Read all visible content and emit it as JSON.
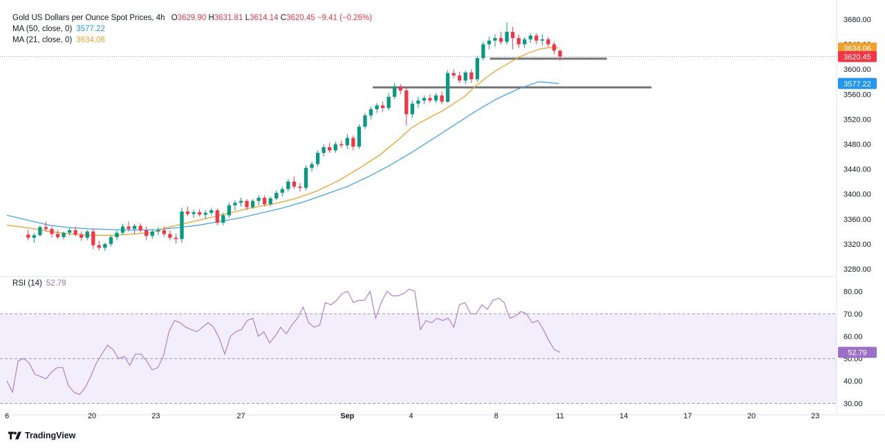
{
  "legend": {
    "title": "Gold US Dollars per Ounce Spot Prices, 4h",
    "open_label": "O",
    "open": "3629.90",
    "high_label": "H",
    "high": "3631.81",
    "low_label": "L",
    "low": "3614.14",
    "close_label": "C",
    "close": "3620.45",
    "change": "−9.41 (−0.26%)",
    "ma50_label": "MA (50, close, 0)",
    "ma50_value": "3577.22",
    "ma21_label": "MA (21, close, 0)",
    "ma21_value": "3634.06"
  },
  "rsi_legend": {
    "label": "RSI (14)",
    "value": "52.79"
  },
  "brand": {
    "name": "TradingView"
  },
  "colors": {
    "up": "#089981",
    "down": "#f23645",
    "ma50": "#42a5f5",
    "ma21": "#f0a12b",
    "rsi": "#b07fd6",
    "rsi_band": "#f3eefb",
    "support": "#757575",
    "grid": "#e0e3eb"
  },
  "chart_data": [
    {
      "type": "candlestick",
      "title": "Gold US Dollars per Ounce Spot Prices, 4h",
      "ylim": [
        3270,
        3700
      ],
      "y_ticks": [
        "3680.00",
        "3640.00",
        "3600.00",
        "3560.00",
        "3520.00",
        "3480.00",
        "3440.00",
        "3400.00",
        "3360.00",
        "3320.00",
        "3280.00"
      ],
      "x_ticks": [
        {
          "day": 16,
          "label": "6"
        },
        {
          "day": 20,
          "label": "20"
        },
        {
          "day": 23,
          "label": "23"
        },
        {
          "day": 27,
          "label": "27"
        },
        {
          "day": 32,
          "label": "Sep"
        },
        {
          "day": 35,
          "label": "4"
        },
        {
          "day": 39,
          "label": "8"
        },
        {
          "day": 42,
          "label": "11"
        },
        {
          "day": 45,
          "label": "14"
        },
        {
          "day": 48,
          "label": "17"
        },
        {
          "day": 51,
          "label": "20"
        },
        {
          "day": 54,
          "label": "23"
        }
      ],
      "last_price": 3620.45,
      "price_labels": [
        {
          "name": "MA 21",
          "value": "3634.06",
          "color": "#f0a12b"
        },
        {
          "name": "Close",
          "value": "3620.45",
          "color": "#f23645"
        },
        {
          "name": "MA 50",
          "value": "3577.22",
          "color": "#2196f3"
        }
      ],
      "support_lines": [
        {
          "from_day": 38.7,
          "to_day": 44.2,
          "value": 3617
        },
        {
          "from_day": 33.2,
          "to_day": 46.3,
          "value": 3571
        }
      ],
      "candles": [
        [
          3335,
          3343,
          3326,
          3330
        ],
        [
          3330,
          3338,
          3322,
          3334
        ],
        [
          3334,
          3350,
          3332,
          3347
        ],
        [
          3347,
          3356,
          3340,
          3344
        ],
        [
          3344,
          3348,
          3330,
          3336
        ],
        [
          3336,
          3342,
          3328,
          3331
        ],
        [
          3331,
          3340,
          3327,
          3338
        ],
        [
          3338,
          3346,
          3333,
          3342
        ],
        [
          3342,
          3348,
          3332,
          3335
        ],
        [
          3335,
          3340,
          3325,
          3330
        ],
        [
          3330,
          3342,
          3326,
          3340
        ],
        [
          3340,
          3345,
          3312,
          3318
        ],
        [
          3318,
          3325,
          3310,
          3314
        ],
        [
          3314,
          3322,
          3309,
          3320
        ],
        [
          3320,
          3334,
          3316,
          3331
        ],
        [
          3331,
          3342,
          3326,
          3338
        ],
        [
          3338,
          3352,
          3334,
          3348
        ],
        [
          3348,
          3356,
          3340,
          3344
        ],
        [
          3344,
          3352,
          3336,
          3349
        ],
        [
          3349,
          3353,
          3338,
          3342
        ],
        [
          3342,
          3348,
          3326,
          3333
        ],
        [
          3333,
          3343,
          3328,
          3340
        ],
        [
          3340,
          3347,
          3334,
          3342
        ],
        [
          3342,
          3348,
          3332,
          3336
        ],
        [
          3336,
          3342,
          3326,
          3330
        ],
        [
          3330,
          3336,
          3321,
          3328
        ],
        [
          3328,
          3378,
          3322,
          3372
        ],
        [
          3372,
          3380,
          3365,
          3368
        ],
        [
          3368,
          3375,
          3362,
          3371
        ],
        [
          3371,
          3376,
          3364,
          3367
        ],
        [
          3367,
          3374,
          3360,
          3370
        ],
        [
          3370,
          3378,
          3366,
          3374
        ],
        [
          3374,
          3377,
          3350,
          3354
        ],
        [
          3354,
          3370,
          3350,
          3366
        ],
        [
          3366,
          3386,
          3362,
          3382
        ],
        [
          3382,
          3390,
          3374,
          3386
        ],
        [
          3386,
          3394,
          3380,
          3389
        ],
        [
          3389,
          3392,
          3374,
          3379
        ],
        [
          3379,
          3392,
          3376,
          3389
        ],
        [
          3389,
          3398,
          3382,
          3394
        ],
        [
          3394,
          3398,
          3380,
          3384
        ],
        [
          3384,
          3396,
          3380,
          3393
        ],
        [
          3393,
          3406,
          3390,
          3402
        ],
        [
          3402,
          3412,
          3396,
          3408
        ],
        [
          3408,
          3424,
          3404,
          3420
        ],
        [
          3420,
          3428,
          3408,
          3412
        ],
        [
          3412,
          3418,
          3404,
          3410
        ],
        [
          3410,
          3446,
          3406,
          3442
        ],
        [
          3442,
          3452,
          3436,
          3448
        ],
        [
          3448,
          3470,
          3444,
          3466
        ],
        [
          3466,
          3480,
          3460,
          3475
        ],
        [
          3475,
          3482,
          3466,
          3470
        ],
        [
          3470,
          3484,
          3466,
          3480
        ],
        [
          3480,
          3486,
          3474,
          3478
        ],
        [
          3478,
          3496,
          3472,
          3490
        ],
        [
          3490,
          3494,
          3470,
          3476
        ],
        [
          3476,
          3512,
          3472,
          3508
        ],
        [
          3508,
          3530,
          3504,
          3526
        ],
        [
          3526,
          3540,
          3520,
          3536
        ],
        [
          3536,
          3546,
          3530,
          3542
        ],
        [
          3542,
          3548,
          3532,
          3538
        ],
        [
          3538,
          3562,
          3534,
          3556
        ],
        [
          3556,
          3578,
          3552,
          3572
        ],
        [
          3572,
          3576,
          3560,
          3566
        ],
        [
          3566,
          3570,
          3510,
          3528
        ],
        [
          3528,
          3550,
          3522,
          3545
        ],
        [
          3545,
          3556,
          3538,
          3550
        ],
        [
          3550,
          3558,
          3544,
          3554
        ],
        [
          3554,
          3560,
          3546,
          3550
        ],
        [
          3550,
          3562,
          3546,
          3558
        ],
        [
          3558,
          3564,
          3544,
          3548
        ],
        [
          3548,
          3598,
          3546,
          3594
        ],
        [
          3594,
          3600,
          3586,
          3590
        ],
        [
          3590,
          3596,
          3578,
          3582
        ],
        [
          3582,
          3598,
          3576,
          3595
        ],
        [
          3595,
          3600,
          3578,
          3584
        ],
        [
          3584,
          3622,
          3580,
          3618
        ],
        [
          3618,
          3645,
          3614,
          3640
        ],
        [
          3640,
          3652,
          3632,
          3646
        ],
        [
          3646,
          3656,
          3636,
          3650
        ],
        [
          3650,
          3660,
          3640,
          3644
        ],
        [
          3644,
          3675,
          3640,
          3660
        ],
        [
          3660,
          3668,
          3632,
          3650
        ],
        [
          3650,
          3656,
          3634,
          3640
        ],
        [
          3640,
          3652,
          3634,
          3648
        ],
        [
          3648,
          3658,
          3642,
          3654
        ],
        [
          3654,
          3658,
          3640,
          3646
        ],
        [
          3646,
          3656,
          3638,
          3648
        ],
        [
          3648,
          3652,
          3636,
          3640
        ],
        [
          3640,
          3644,
          3624,
          3630
        ],
        [
          3629.9,
          3631.81,
          3614.14,
          3620.45
        ]
      ],
      "ma21": [
        [
          16.0,
          3350
        ],
        [
          17.0,
          3346
        ],
        [
          18.0,
          3340
        ],
        [
          19.0,
          3336
        ],
        [
          20.0,
          3334
        ],
        [
          21.0,
          3334
        ],
        [
          22.0,
          3336
        ],
        [
          22.8,
          3338
        ],
        [
          23.5,
          3346
        ],
        [
          24.5,
          3354
        ],
        [
          25.5,
          3362
        ],
        [
          26.5,
          3370
        ],
        [
          27.5,
          3378
        ],
        [
          28.5,
          3384
        ],
        [
          29.5,
          3392
        ],
        [
          30.5,
          3404
        ],
        [
          31.5,
          3420
        ],
        [
          32.5,
          3440
        ],
        [
          33.5,
          3462
        ],
        [
          34.5,
          3490
        ],
        [
          35.0,
          3506
        ],
        [
          35.5,
          3516
        ],
        [
          36.5,
          3534
        ],
        [
          37.5,
          3556
        ],
        [
          38.0,
          3572
        ],
        [
          38.5,
          3586
        ],
        [
          39.0,
          3598
        ],
        [
          39.5,
          3608
        ],
        [
          40.0,
          3618
        ],
        [
          40.5,
          3626
        ],
        [
          41.0,
          3632
        ],
        [
          41.5,
          3635
        ],
        [
          41.95,
          3634.06
        ]
      ],
      "ma50": [
        [
          16.0,
          3366
        ],
        [
          17.0,
          3358
        ],
        [
          18.0,
          3350
        ],
        [
          19.0,
          3346
        ],
        [
          20.0,
          3344
        ],
        [
          21.0,
          3343
        ],
        [
          22.0,
          3342
        ],
        [
          23.0,
          3343
        ],
        [
          24.0,
          3346
        ],
        [
          25.0,
          3350
        ],
        [
          26.0,
          3356
        ],
        [
          27.0,
          3362
        ],
        [
          28.0,
          3370
        ],
        [
          29.0,
          3378
        ],
        [
          30.0,
          3388
        ],
        [
          31.0,
          3400
        ],
        [
          32.0,
          3412
        ],
        [
          33.0,
          3428
        ],
        [
          34.0,
          3446
        ],
        [
          35.0,
          3466
        ],
        [
          36.0,
          3488
        ],
        [
          37.0,
          3510
        ],
        [
          38.0,
          3532
        ],
        [
          39.0,
          3552
        ],
        [
          40.0,
          3568
        ],
        [
          41.0,
          3580
        ],
        [
          41.95,
          3577.22
        ]
      ]
    },
    {
      "type": "line",
      "title": "RSI (14)",
      "ylim": [
        28,
        86
      ],
      "y_ticks": [
        "80.00",
        "70.00",
        "60.00",
        "50.00",
        "40.00",
        "30.00"
      ],
      "band": [
        30,
        70
      ],
      "midline": 50,
      "last_value": 52.79,
      "values": [
        40,
        35,
        49,
        50,
        48,
        43,
        42,
        41,
        44,
        46,
        46,
        38,
        35,
        34,
        37,
        42,
        48,
        52,
        56,
        54,
        50,
        51,
        47,
        52,
        52,
        49,
        45,
        46,
        51,
        62,
        67,
        66,
        64,
        63,
        62,
        64,
        66,
        64,
        59,
        52,
        60,
        62,
        63,
        67,
        68,
        60,
        62,
        57,
        60,
        64,
        61,
        65,
        68,
        73,
        66,
        64,
        65,
        75,
        74,
        76,
        79,
        80,
        75,
        76,
        76,
        80,
        68,
        75,
        80,
        78,
        78,
        79,
        81,
        80,
        63,
        67,
        66,
        68,
        67,
        68,
        64,
        74,
        75,
        70,
        70,
        74,
        72,
        76,
        77,
        75,
        68,
        69,
        71,
        70,
        66,
        67,
        63,
        58,
        54,
        52.79
      ]
    }
  ]
}
